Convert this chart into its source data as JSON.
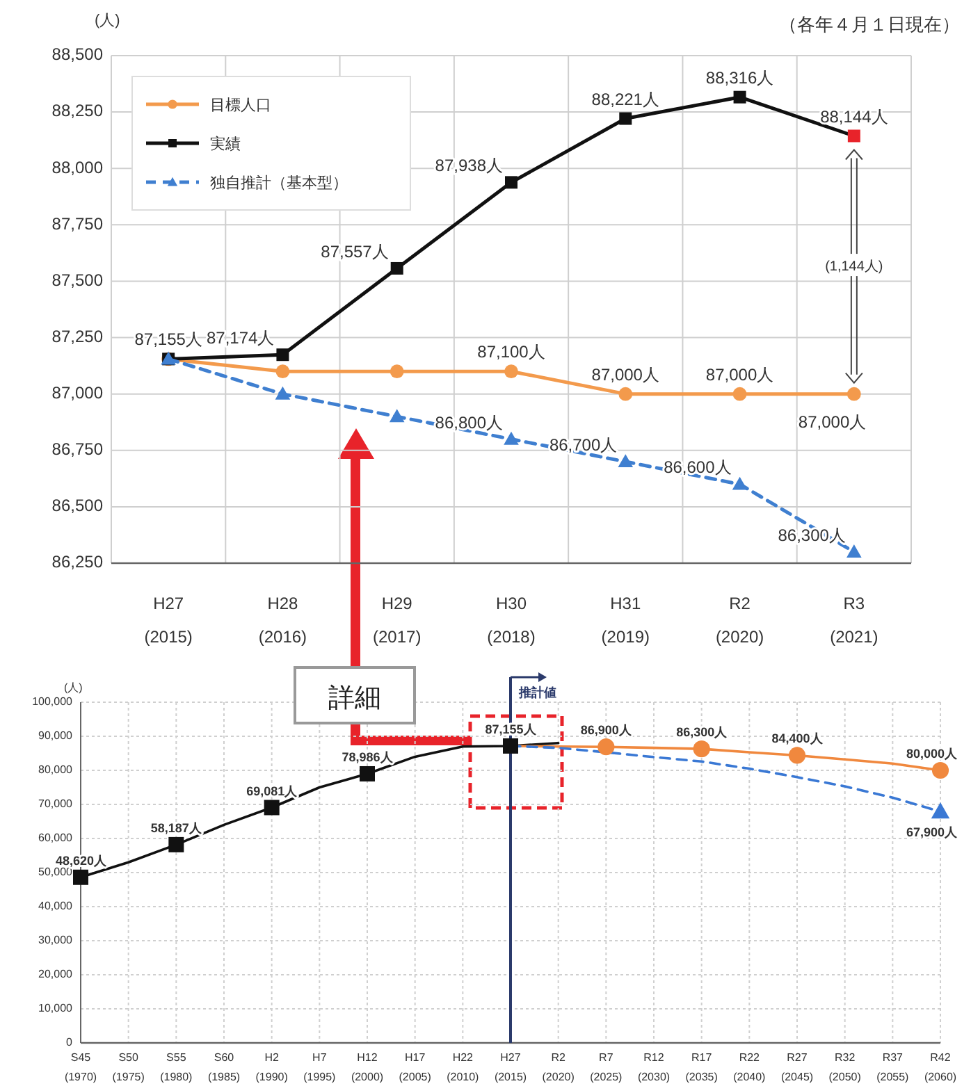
{
  "chart_data": [
    {
      "type": "line",
      "ylabel": "(人)",
      "categories": [
        "H27\n(2015)",
        "H28\n(2016)",
        "H29\n(2017)",
        "H30\n(2018)",
        "H31\n(2019)",
        "R2\n(2020)",
        "R3\n(2021)"
      ],
      "series": [
        {
          "name": "目標人口",
          "color": "#f39a4c",
          "marker": "circle",
          "line_style": "solid",
          "values": [
            87155,
            87100,
            87100,
            87100,
            87000,
            87000,
            87000
          ],
          "value_labels": [
            null,
            null,
            null,
            "87,100人",
            "87,000人",
            "87,000人",
            "87,000人"
          ]
        },
        {
          "name": "実績",
          "color": "#111111",
          "colors": [
            "#111111",
            "#111111",
            "#111111",
            "#111111",
            "#111111",
            "#111111",
            "#e8232a"
          ],
          "marker": "square",
          "line_style": "solid",
          "values": [
            87155,
            87174,
            87557,
            87938,
            88221,
            88316,
            88144
          ],
          "value_labels": [
            "87,155人",
            "87,174人",
            "87,557人",
            "87,938人",
            "88,221人",
            "88,316人",
            "88,144人"
          ]
        },
        {
          "name": "独自推計（基本型）",
          "color": "#3f7fd0",
          "marker": "triangle",
          "line_style": "dashed",
          "values": [
            87155,
            87000,
            86900,
            86800,
            86700,
            86600,
            86300
          ],
          "value_labels": [
            null,
            null,
            null,
            "86,800人",
            "86,700人",
            "86,600人",
            "86,300人"
          ]
        }
      ],
      "ylim": [
        86250,
        88500
      ],
      "yticks": [
        {
          "value": 86250,
          "label": "86,250"
        },
        {
          "value": 86500,
          "label": "86,500"
        },
        {
          "value": 86750,
          "label": "86,750"
        },
        {
          "value": 87000,
          "label": "87,000"
        },
        {
          "value": 87250,
          "label": "87,250"
        },
        {
          "value": 87500,
          "label": "87,500"
        },
        {
          "value": 87750,
          "label": "87,750"
        },
        {
          "value": 88000,
          "label": "88,000"
        },
        {
          "value": 88250,
          "label": "88,250"
        },
        {
          "value": 88500,
          "label": "88,500"
        }
      ],
      "grid": true,
      "legend": "top left",
      "annotations": [
        "（各年４月１日現在）",
        "(1,144人)"
      ]
    },
    {
      "type": "line",
      "ylabel": "(人)",
      "categories": [
        "S45\n(1970)",
        "S50\n(1975)",
        "S55\n(1980)",
        "S60\n(1985)",
        "H2\n(1990)",
        "H7\n(1995)",
        "H12\n(2000)",
        "H17\n(2005)",
        "H22\n(2010)",
        "H27\n(2015)",
        "R2\n(2020)",
        "R7\n(2025)",
        "R12\n(2030)",
        "R17\n(2035)",
        "R22\n(2040)",
        "R27\n(2045)",
        "R32\n(2050)",
        "R37\n(2055)",
        "R42\n(2060)"
      ],
      "series": [
        {
          "color": "#111111",
          "marker": "none",
          "line_style": "solid",
          "values": [
            48620,
            53000,
            58187,
            64000,
            69081,
            75000,
            78986,
            84000,
            87000,
            87155,
            88000,
            null,
            null,
            null,
            null,
            null,
            null,
            null,
            null
          ]
        },
        {
          "color": "#f0883e",
          "marker": "none",
          "line_style": "solid",
          "values": [
            null,
            null,
            null,
            null,
            null,
            null,
            null,
            null,
            null,
            87155,
            87000,
            86900,
            86600,
            86300,
            85300,
            84400,
            83200,
            82000,
            80000
          ]
        },
        {
          "color": "#3a78d4",
          "marker": "none",
          "line_style": "dashed",
          "values": [
            null,
            null,
            null,
            null,
            null,
            null,
            null,
            null,
            null,
            87155,
            86600,
            85300,
            83900,
            82600,
            80500,
            78000,
            75300,
            72000,
            67900
          ]
        },
        {
          "type": "scatter",
          "color": "#111111",
          "marker": "square",
          "values": [
            48620,
            null,
            58187,
            null,
            69081,
            null,
            78986,
            null,
            null,
            87155,
            null,
            null,
            null,
            null,
            null,
            null,
            null,
            null,
            null
          ],
          "value_labels": [
            "48,620人",
            null,
            "58,187人",
            null,
            "69,081人",
            null,
            "78,986人",
            null,
            null,
            "87,155人",
            null,
            null,
            null,
            null,
            null,
            null,
            null,
            null,
            null
          ]
        },
        {
          "type": "scatter",
          "color": "#f0883e",
          "marker": "circle",
          "values": [
            null,
            null,
            null,
            null,
            null,
            null,
            null,
            null,
            null,
            null,
            null,
            86900,
            null,
            86300,
            null,
            84400,
            null,
            null,
            80000
          ],
          "value_labels": [
            null,
            null,
            null,
            null,
            null,
            null,
            null,
            null,
            null,
            null,
            null,
            "86,900人",
            null,
            "86,300人",
            null,
            "84,400人",
            null,
            null,
            "80,000人"
          ]
        },
        {
          "type": "scatter",
          "color": "#3a78d4",
          "marker": "triangle",
          "values": [
            null,
            null,
            null,
            null,
            null,
            null,
            null,
            null,
            null,
            null,
            null,
            null,
            null,
            null,
            null,
            null,
            null,
            null,
            67900
          ],
          "value_labels": [
            null,
            null,
            null,
            null,
            null,
            null,
            null,
            null,
            null,
            null,
            null,
            null,
            null,
            null,
            null,
            null,
            null,
            null,
            "67,900人"
          ]
        }
      ],
      "ylim": [
        0,
        100000
      ],
      "yticks": [
        0,
        {
          "value": 10000,
          "label": "10,000"
        },
        {
          "value": 20000,
          "label": "20,000"
        },
        {
          "value": 30000,
          "label": "30,000"
        },
        {
          "value": 40000,
          "label": "40,000"
        },
        {
          "value": 50000,
          "label": "50,000"
        },
        {
          "value": 60000,
          "label": "60,000"
        },
        {
          "value": 70000,
          "label": "70,000"
        },
        {
          "value": 80000,
          "label": "80,000"
        },
        {
          "value": 90000,
          "label": "90,000"
        },
        {
          "value": 100000,
          "label": "100,000"
        }
      ],
      "grid": true,
      "ref_lines": [
        {
          "axis": "x",
          "value": "H27\n(2015)",
          "label": "推計値",
          "color": "#2b3a6b"
        }
      ],
      "annotations": [
        "詳細"
      ]
    }
  ]
}
